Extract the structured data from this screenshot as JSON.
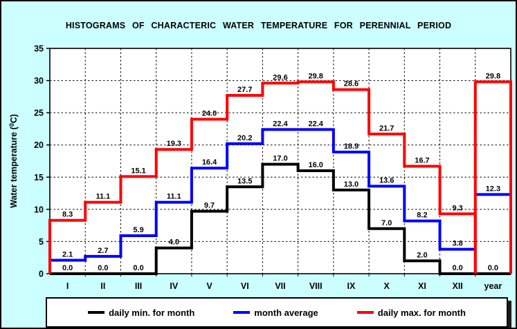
{
  "chart": {
    "title": "HISTOGRAMS OF CHARACTERIC WATER TEMPERATURE FOR PERENNIAL PERIOD"
  },
  "colors": {
    "background": "#ccffff",
    "plot_background": "#ffffff",
    "grid": "#000000",
    "min_line": "#000000",
    "avg_line": "#0000ff",
    "max_line": "#ff0000"
  },
  "chart_data": {
    "type": "line",
    "step": true,
    "title": "HISTOGRAMS OF CHARACTERIC WATER TEMPERATURE FOR PERENNIAL PERIOD",
    "categories": [
      "I",
      "II",
      "III",
      "IV",
      "V",
      "VI",
      "VII",
      "VIII",
      "IX",
      "X",
      "XI",
      "XII",
      "year"
    ],
    "series": [
      {
        "name": "daily min. for month",
        "role": "min",
        "color": "#000000",
        "values": [
          0.0,
          0.0,
          0.0,
          4.0,
          9.7,
          13.5,
          17.0,
          16.0,
          13.0,
          7.0,
          2.0,
          0.0,
          0.0
        ]
      },
      {
        "name": "month average",
        "role": "avg",
        "color": "#0000ff",
        "values": [
          2.1,
          2.7,
          5.9,
          11.1,
          16.4,
          20.2,
          22.4,
          22.4,
          18.9,
          13.6,
          8.2,
          3.8,
          12.3
        ]
      },
      {
        "name": "daily max. for month",
        "role": "max",
        "color": "#ff0000",
        "values": [
          8.3,
          11.1,
          15.1,
          19.3,
          24.0,
          27.7,
          29.6,
          29.8,
          28.6,
          21.7,
          16.7,
          9.3,
          29.8
        ]
      }
    ],
    "xlabel": "",
    "ylabel_prefix": "Water temperature (",
    "ylabel_sup": "0",
    "ylabel_suffix": "C)",
    "ylim": [
      0,
      35
    ],
    "ytick_step": 5,
    "yticks": [
      0,
      5,
      10,
      15,
      20,
      25,
      30,
      35
    ],
    "grid": true,
    "legend_position": "bottom"
  },
  "legend": {
    "items": [
      {
        "label": "daily min. for month",
        "color": "#000000"
      },
      {
        "label": "month average",
        "color": "#0000ff"
      },
      {
        "label": "daily max. for month",
        "color": "#ff0000"
      }
    ]
  }
}
